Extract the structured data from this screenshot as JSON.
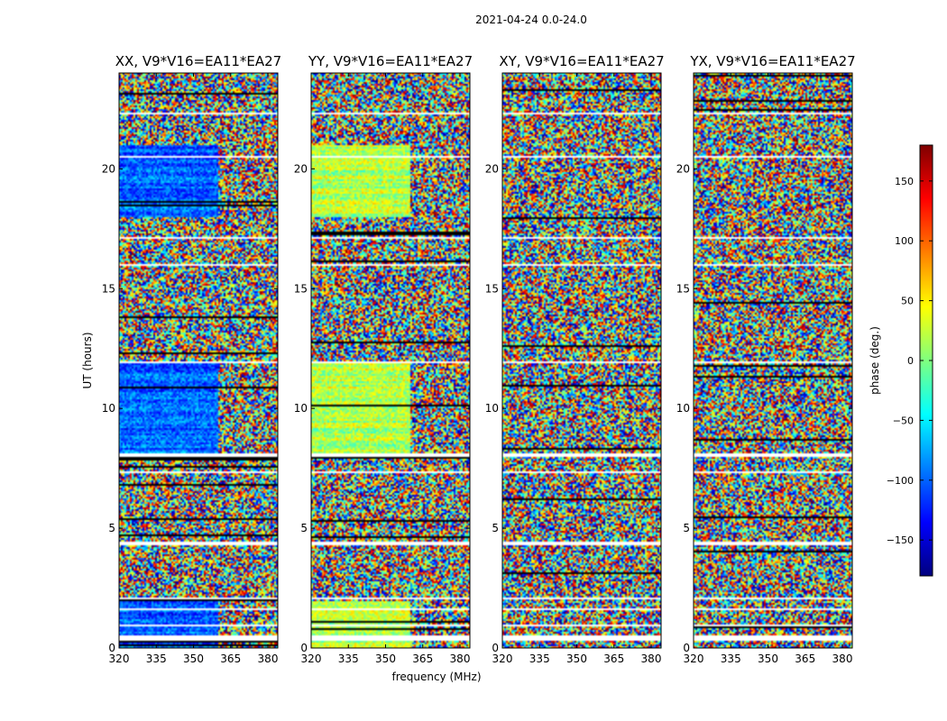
{
  "chart_data": {
    "type": "heatmap",
    "title": "2021-04-24 0.0-24.0",
    "xlabel": "frequency (MHz)",
    "ylabel": "UT (hours)",
    "xlim": [
      320,
      384
    ],
    "ylim": [
      0,
      24
    ],
    "x_ticks": [
      "320",
      "335",
      "350",
      "365",
      "380"
    ],
    "x_tick_values": [
      320,
      335,
      350,
      365,
      380
    ],
    "y_ticks": [
      "0",
      "5",
      "10",
      "15",
      "20"
    ],
    "y_tick_values": [
      0,
      5,
      10,
      15,
      20
    ],
    "panels": [
      {
        "name": "XX, V9*V16=EA11*EA27",
        "polarization": "XX"
      },
      {
        "name": "YY, V9*V16=EA11*EA27",
        "polarization": "YY"
      },
      {
        "name": "XY, V9*V16=EA11*EA27",
        "polarization": "XY"
      },
      {
        "name": "YX, V9*V16=EA11*EA27",
        "polarization": "YX"
      }
    ],
    "colorbar": {
      "label": "phase (deg.)",
      "range": [
        -180,
        180
      ],
      "ticks": [
        "150",
        "100",
        "50",
        "0",
        "−50",
        "−100",
        "−150"
      ],
      "tick_values": [
        150,
        100,
        50,
        0,
        -50,
        -100,
        -150
      ],
      "colormap": "jet",
      "colors": [
        "#00007f",
        "#0000ff",
        "#007fff",
        "#00ffff",
        "#7fff7f",
        "#ffff00",
        "#ff7f00",
        "#ff0000",
        "#7f0000"
      ]
    },
    "flagged_gaps_ut_hours": [
      [
        0.35,
        0.6
      ],
      [
        0.95,
        1.05
      ],
      [
        1.6,
        1.7
      ],
      [
        2.05,
        2.15
      ],
      [
        4.35,
        4.45
      ],
      [
        7.3,
        7.4
      ],
      [
        8.05,
        8.15
      ],
      [
        11.9,
        12.0
      ],
      [
        15.95,
        16.05
      ],
      [
        17.1,
        17.2
      ],
      [
        20.5,
        20.6
      ],
      [
        22.3,
        22.4
      ]
    ]
  }
}
